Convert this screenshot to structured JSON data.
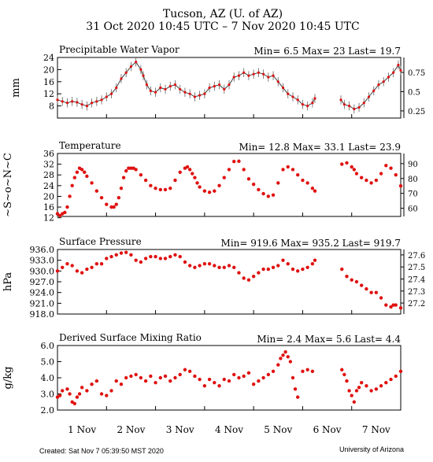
{
  "header": {
    "title": "Tucson, AZ (U. of AZ)",
    "subtitle": "31 Oct 2020 10:45 UTC – 7 Nov 2020 10:45 UTC"
  },
  "footer": {
    "created": "Created: Sat Nov  7 05:39:50 MST 2020",
    "credit": "University of Arizona"
  },
  "colors": {
    "data": "#e01010",
    "errorbar": "#606060",
    "axis": "#000000"
  },
  "x_axis": {
    "ticks": [
      "1 Nov",
      "2 Nov",
      "3 Nov",
      "4 Nov",
      "5 Nov",
      "6 Nov",
      "7 Nov"
    ],
    "range_days": [
      0,
      7
    ]
  },
  "chart_data": [
    {
      "type": "line",
      "title": "Precipitable Water Vapor",
      "stats": "Min= 6.5 Max= 23 Last= 19.7",
      "ylabel": "mm",
      "ylim": [
        4,
        24
      ],
      "yticks": [
        "24",
        "20",
        "16",
        "12",
        "8"
      ],
      "ytick_values": [
        24,
        20,
        16,
        12,
        8
      ],
      "y2ticks": [
        "0.75",
        "0.5",
        "0.25"
      ],
      "y2tick_values": [
        0.75,
        0.5,
        0.25
      ],
      "y2lim": [
        0.157,
        0.945
      ],
      "series": [
        {
          "x": [
            0.0,
            0.1,
            0.2,
            0.3,
            0.4,
            0.5,
            0.6,
            0.7,
            0.8,
            0.9,
            1.0,
            1.1,
            1.2,
            1.3,
            1.4,
            1.5,
            1.6,
            1.7,
            1.75,
            1.82,
            1.9,
            2.0,
            2.1,
            2.2,
            2.3,
            2.4,
            2.5,
            2.6,
            2.7,
            2.8,
            2.9,
            3.0,
            3.1,
            3.2,
            3.3,
            3.4,
            3.5,
            3.6,
            3.7,
            3.8,
            3.9,
            4.0,
            4.1,
            4.2,
            4.3,
            4.4,
            4.5,
            4.6,
            4.7,
            4.8,
            4.9,
            5.0,
            5.1,
            5.2,
            5.25
          ],
          "y": [
            10.0,
            9.5,
            9.0,
            9.5,
            9.2,
            8.5,
            8.0,
            9.0,
            9.5,
            10.0,
            11.0,
            12.0,
            14.0,
            17.0,
            19.0,
            21.0,
            22.5,
            20.0,
            18.0,
            15.0,
            13.0,
            12.5,
            14.0,
            13.5,
            14.5,
            15.0,
            13.5,
            12.5,
            12.0,
            11.0,
            11.5,
            12.0,
            14.0,
            14.5,
            15.0,
            13.5,
            15.0,
            17.5,
            18.0,
            19.0,
            18.0,
            18.5,
            19.0,
            18.5,
            17.5,
            18.0,
            16.0,
            14.0,
            12.0,
            11.0,
            10.0,
            8.5,
            8.0,
            9.0,
            10.5
          ]
        },
        {
          "x": [
            5.78,
            5.85,
            5.95,
            6.05,
            6.15,
            6.25,
            6.35,
            6.45,
            6.55,
            6.65,
            6.75,
            6.85,
            6.95,
            7.0
          ],
          "y": [
            10.0,
            8.5,
            8.0,
            7.0,
            7.5,
            9.0,
            11.0,
            13.0,
            15.0,
            16.0,
            17.5,
            19.0,
            21.5,
            19.7
          ]
        }
      ]
    },
    {
      "type": "scatter",
      "title": "Temperature",
      "stats": "Min= 12.8 Max= 33.1 Last= 23.9",
      "ylabel": "~S~o~N~C",
      "ylim": [
        12.5,
        36
      ],
      "yticks": [
        "36",
        "32",
        "28",
        "24",
        "20",
        "16",
        "12"
      ],
      "ytick_values": [
        36,
        32,
        28,
        24,
        20,
        16,
        12
      ],
      "y2ticks": [
        "90",
        "80",
        "70",
        "60"
      ],
      "y2tick_values": [
        90,
        80,
        70,
        60
      ],
      "y2lim": [
        54.5,
        96.8
      ],
      "series": [
        {
          "x": [
            0.0,
            0.05,
            0.1,
            0.15,
            0.2,
            0.25,
            0.3,
            0.35,
            0.4,
            0.45,
            0.5,
            0.55,
            0.6,
            0.7,
            0.8,
            0.9,
            1.0,
            1.1,
            1.15,
            1.2,
            1.25,
            1.3,
            1.35,
            1.4,
            1.45,
            1.5,
            1.55,
            1.6,
            1.7,
            1.8,
            1.9,
            2.0,
            2.1,
            2.2,
            2.3,
            2.4,
            2.5,
            2.6,
            2.65,
            2.7,
            2.75,
            2.8,
            2.85,
            2.9,
            3.0,
            3.1,
            3.2,
            3.3,
            3.4,
            3.5,
            3.6,
            3.7,
            3.8,
            3.9,
            4.0,
            4.1,
            4.2,
            4.3,
            4.4,
            4.5,
            4.6,
            4.7,
            4.8,
            4.9,
            5.0,
            5.1,
            5.2,
            5.25
          ],
          "y": [
            13.5,
            12.8,
            13.5,
            14.0,
            16.0,
            20.0,
            24.0,
            27.0,
            29.0,
            30.5,
            30.0,
            29.0,
            27.5,
            25.0,
            22.0,
            19.5,
            17.0,
            16.0,
            16.0,
            17.0,
            19.5,
            23.0,
            27.0,
            29.5,
            30.5,
            30.5,
            30.5,
            30.0,
            28.0,
            26.0,
            24.0,
            23.0,
            22.5,
            22.5,
            23.0,
            26.0,
            29.0,
            30.5,
            31.0,
            30.0,
            28.5,
            27.0,
            25.0,
            23.5,
            22.0,
            21.5,
            22.0,
            24.0,
            27.0,
            30.0,
            33.0,
            33.1,
            30.0,
            26.5,
            24.5,
            22.5,
            21.0,
            20.0,
            20.5,
            25.0,
            30.0,
            31.0,
            30.0,
            28.0,
            26.0,
            25.0,
            23.0,
            22.0
          ]
        },
        {
          "x": [
            5.8,
            5.9,
            6.0,
            6.05,
            6.1,
            6.2,
            6.3,
            6.4,
            6.5,
            6.6,
            6.7,
            6.8,
            6.9,
            7.0
          ],
          "y": [
            32.0,
            32.5,
            31.0,
            30.0,
            28.5,
            27.0,
            26.0,
            25.0,
            26.0,
            28.5,
            31.5,
            30.5,
            28.0,
            23.9
          ]
        }
      ]
    },
    {
      "type": "scatter",
      "title": "Surface Pressure",
      "stats": "Min= 919.6 Max= 935.2 Last= 919.7",
      "ylabel": "hPa",
      "ylim": [
        918,
        936
      ],
      "yticks": [
        "936.0",
        "933.0",
        "930.0",
        "927.0",
        "924.0",
        "921.0",
        "918.0"
      ],
      "ytick_values": [
        936,
        933,
        930,
        927,
        924,
        921,
        918
      ],
      "y2ticks": [
        "27.6",
        "27.5",
        "27.4",
        "27.3",
        "27.2"
      ],
      "y2tick_values": [
        27.6,
        27.5,
        27.4,
        27.3,
        27.2
      ],
      "y2lim": [
        27.109,
        27.645
      ],
      "series": [
        {
          "x": [
            0.0,
            0.1,
            0.2,
            0.3,
            0.4,
            0.5,
            0.6,
            0.7,
            0.8,
            0.9,
            1.0,
            1.1,
            1.2,
            1.3,
            1.4,
            1.5,
            1.6,
            1.7,
            1.8,
            1.9,
            2.0,
            2.1,
            2.2,
            2.3,
            2.4,
            2.5,
            2.6,
            2.7,
            2.8,
            2.9,
            3.0,
            3.1,
            3.2,
            3.3,
            3.4,
            3.5,
            3.6,
            3.7,
            3.8,
            3.9,
            4.0,
            4.1,
            4.2,
            4.3,
            4.4,
            4.5,
            4.6,
            4.7,
            4.8,
            4.9,
            5.0,
            5.1,
            5.2,
            5.25
          ],
          "y": [
            930.0,
            931.0,
            932.0,
            931.5,
            930.0,
            929.5,
            930.5,
            931.0,
            932.0,
            932.0,
            933.5,
            934.0,
            934.5,
            935.0,
            935.2,
            934.5,
            933.0,
            932.5,
            933.5,
            934.0,
            934.0,
            933.5,
            933.5,
            934.0,
            934.5,
            934.0,
            932.5,
            931.5,
            931.0,
            931.5,
            932.0,
            932.0,
            931.5,
            931.0,
            931.0,
            931.5,
            931.0,
            929.5,
            928.0,
            927.5,
            928.5,
            929.5,
            930.5,
            930.5,
            931.0,
            931.5,
            933.0,
            932.0,
            930.5,
            930.0,
            930.5,
            931.0,
            932.0,
            933.0
          ]
        },
        {
          "x": [
            5.8,
            5.9,
            6.0,
            6.1,
            6.2,
            6.3,
            6.4,
            6.5,
            6.6,
            6.7,
            6.8,
            6.85,
            6.9,
            7.0
          ],
          "y": [
            930.5,
            928.5,
            927.5,
            927.0,
            926.0,
            925.0,
            924.0,
            924.0,
            922.5,
            920.5,
            920.0,
            920.5,
            920.5,
            919.7
          ]
        }
      ]
    },
    {
      "type": "scatter",
      "title": "Derived Surface Mixing Ratio",
      "stats": "Min= 2.4 Max= 5.6 Last= 4.4",
      "ylabel": "g/kg",
      "ylim": [
        2,
        6
      ],
      "yticks": [
        "6.0",
        "5.0",
        "4.0",
        "3.0",
        "2.0"
      ],
      "ytick_values": [
        6,
        5,
        4,
        3,
        2
      ],
      "series": [
        {
          "x": [
            0.0,
            0.05,
            0.1,
            0.2,
            0.25,
            0.3,
            0.35,
            0.4,
            0.45,
            0.5,
            0.6,
            0.7,
            0.8,
            0.9,
            1.0,
            1.1,
            1.2,
            1.3,
            1.4,
            1.5,
            1.6,
            1.7,
            1.8,
            1.9,
            2.0,
            2.1,
            2.2,
            2.3,
            2.4,
            2.5,
            2.6,
            2.7,
            2.8,
            2.9,
            3.0,
            3.1,
            3.2,
            3.3,
            3.4,
            3.5,
            3.6,
            3.7,
            3.8,
            3.9,
            4.0,
            4.1,
            4.2,
            4.3,
            4.4,
            4.5,
            4.55,
            4.6,
            4.65,
            4.7,
            4.75,
            4.8,
            4.85,
            4.9,
            5.0,
            5.1,
            5.2
          ],
          "y": [
            2.8,
            2.9,
            3.2,
            3.3,
            3.0,
            2.5,
            2.4,
            2.8,
            3.0,
            3.4,
            3.2,
            3.6,
            3.8,
            3.0,
            2.9,
            3.2,
            3.8,
            3.6,
            4.0,
            4.1,
            4.2,
            4.0,
            3.8,
            4.1,
            3.7,
            4.0,
            4.1,
            3.8,
            4.0,
            4.2,
            4.5,
            4.4,
            4.1,
            3.9,
            3.5,
            3.9,
            3.7,
            3.5,
            3.9,
            3.8,
            4.2,
            4.0,
            4.1,
            4.3,
            3.6,
            3.8,
            4.0,
            4.2,
            4.4,
            4.8,
            5.2,
            5.4,
            5.6,
            5.3,
            5.0,
            4.0,
            3.3,
            2.8,
            4.4,
            4.5,
            4.4
          ]
        },
        {
          "x": [
            5.8,
            5.85,
            5.9,
            5.95,
            6.0,
            6.05,
            6.1,
            6.15,
            6.2,
            6.3,
            6.4,
            6.5,
            6.6,
            6.7,
            6.8,
            6.9,
            7.0
          ],
          "y": [
            4.5,
            4.2,
            3.8,
            3.2,
            2.9,
            2.5,
            3.2,
            3.4,
            3.7,
            3.5,
            3.2,
            3.3,
            3.5,
            3.7,
            3.9,
            4.1,
            4.4
          ]
        }
      ]
    }
  ]
}
